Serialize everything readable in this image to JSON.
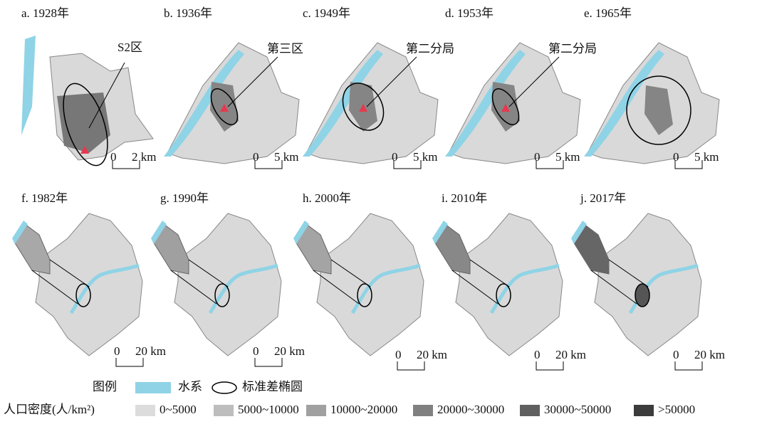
{
  "panels": [
    {
      "label": "a. 1928年",
      "annotation": "S2区",
      "scale_start": "0",
      "scale_end": "2 km"
    },
    {
      "label": "b. 1936年",
      "annotation": "第三区",
      "scale_start": "0",
      "scale_end": "5 km"
    },
    {
      "label": "c. 1949年",
      "annotation": "第二分局",
      "scale_start": "0",
      "scale_end": "5 km"
    },
    {
      "label": "d. 1953年",
      "annotation": "第二分局",
      "scale_start": "0",
      "scale_end": "5 km"
    },
    {
      "label": "e. 1965年",
      "scale_start": "0",
      "scale_end": "5 km"
    },
    {
      "label": "f. 1982年",
      "scale_start": "0",
      "scale_end": "20 km"
    },
    {
      "label": "g. 1990年",
      "scale_start": "0",
      "scale_end": "20 km"
    },
    {
      "label": "h. 2000年",
      "scale_start": "0",
      "scale_end": "20 km"
    },
    {
      "label": "i. 2010年",
      "scale_start": "0",
      "scale_end": "20 km"
    },
    {
      "label": "j. 2017年",
      "scale_start": "0",
      "scale_end": "20 km"
    }
  ],
  "legend": {
    "title": "图例",
    "water": "水系",
    "ellipse": "标准差椭圆",
    "density_title": "人口密度(人/km²)",
    "classes": [
      "0~5000",
      "5000~10000",
      "10000~20000",
      "20000~30000",
      "30000~50000",
      ">50000"
    ]
  }
}
